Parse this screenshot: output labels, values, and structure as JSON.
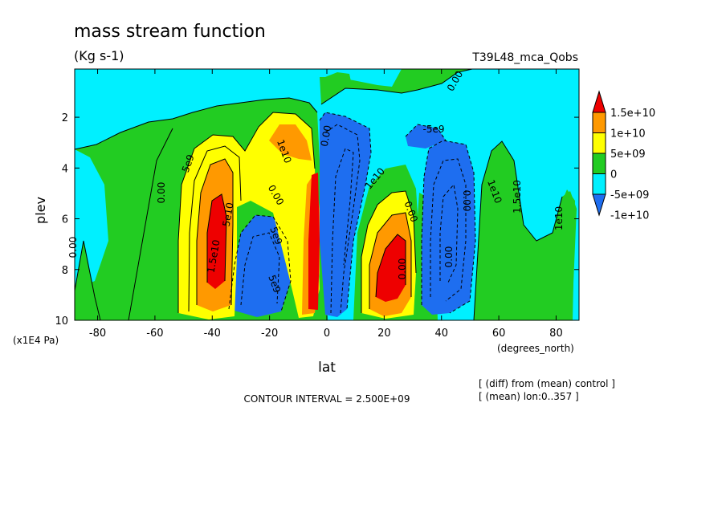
{
  "chart_data": {
    "type": "contour",
    "title": "mass stream function",
    "units": "(Kg s-1)",
    "run_label": "T39L48_mca_Qobs",
    "xlabel": "lat",
    "x_units": "(degrees_north)",
    "ylabel": "plev",
    "y_units": "(x1E4 Pa)",
    "xlim": [
      -88,
      88
    ],
    "ylim": [
      10,
      0.1
    ],
    "x_ticks": [
      -80,
      -60,
      -40,
      -20,
      0,
      20,
      40,
      60,
      80
    ],
    "x_tick_labels": [
      "-80",
      "-60",
      "-40",
      "-20",
      "0",
      "20",
      "40",
      "60",
      "80"
    ],
    "y_ticks": [
      2,
      4,
      6,
      8,
      10
    ],
    "y_tick_labels": [
      "2",
      "4",
      "6",
      "8",
      "10"
    ],
    "contour_interval": "CONTOUR INTERVAL = 2.500E+09",
    "notes": [
      "[ (diff) from (mean) control ]",
      "[ (mean) lon:0..357 ]"
    ],
    "colorbar": {
      "levels": [
        "-1e+10",
        "-5e+09",
        "0",
        "5e+09",
        "1e+10",
        "1.5e+10"
      ],
      "colors": [
        "#1e6ef0",
        "#00f0ff",
        "#22cc22",
        "#ffff00",
        "#ff9900",
        "#ee0000"
      ]
    },
    "cells": [
      {
        "lat": -38,
        "plev": 6.5,
        "value": 15000000000.0
      },
      {
        "lat": -14,
        "plev": 3.2,
        "value": 10000000000.0
      },
      {
        "lat": -24,
        "plev": 7.8,
        "value": -10000000000.0
      },
      {
        "lat": -5,
        "plev": 7.0,
        "value": 15000000000.0
      },
      {
        "lat": 3,
        "plev": 7.0,
        "value": -15000000000.0
      },
      {
        "lat": 10,
        "plev": 3.5,
        "value": -10000000000.0
      },
      {
        "lat": 23,
        "plev": 8.2,
        "value": 15000000000.0
      },
      {
        "lat": 42,
        "plev": 6.5,
        "value": -15000000000.0
      }
    ],
    "contour_labels": [
      "5e9",
      "0.00",
      "1.5e10",
      "5e10",
      "1e10",
      "0.00",
      "5e9",
      "1e10",
      "0.00",
      "5e9",
      "0.00",
      "1e10",
      "1.5e10",
      "1e10",
      "0.00",
      "0.00",
      "0.00",
      "0.00",
      "0.00",
      "-5e9"
    ],
    "colors": {
      "neg_deep": "#1e6ef0",
      "neg_light": "#00f0ff",
      "zero": "#22cc22",
      "pos_light": "#ffff00",
      "pos_mid": "#ff9900",
      "pos_high": "#ee0000"
    }
  }
}
